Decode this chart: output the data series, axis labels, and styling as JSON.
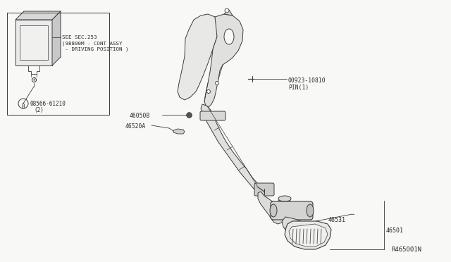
{
  "bg_color": "#f8f8f6",
  "lc": "#3a3a3a",
  "tc": "#2a2a2a",
  "diagram_ref": "R465001N",
  "see_sec_1": "SEE SEC.253",
  "see_sec_2": "(98800M - CONT ASSY",
  "see_sec_3": " - DRIVING POSITION )",
  "label_46501": "46501",
  "label_46531": "46531",
  "label_46050B": "46050B",
  "label_46520A": "46520A",
  "label_pin_num": "00923-10810",
  "label_pin": "PIN(1)",
  "label_08566": "08566-61210",
  "label_qty": "(2)",
  "fs": 6.0,
  "fs_ref": 6.5
}
